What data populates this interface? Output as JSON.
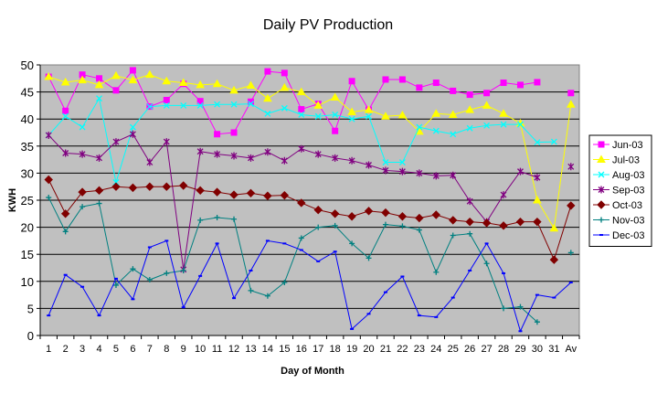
{
  "chart_data": {
    "type": "line",
    "title": "Daily PV Production",
    "xlabel": "Day of Month",
    "ylabel": "KWH",
    "ylim": [
      0,
      50
    ],
    "y_ticks": [
      0,
      5,
      10,
      15,
      20,
      25,
      30,
      35,
      40,
      45,
      50
    ],
    "grid": true,
    "legend_position": "right",
    "plot_background": "#c0c0c0",
    "categories": [
      "1",
      "2",
      "3",
      "4",
      "5",
      "6",
      "7",
      "8",
      "9",
      "10",
      "11",
      "12",
      "13",
      "14",
      "15",
      "16",
      "17",
      "18",
      "19",
      "20",
      "21",
      "22",
      "23",
      "24",
      "25",
      "26",
      "27",
      "28",
      "29",
      "30",
      "31",
      "Av"
    ],
    "series": [
      {
        "name": "Jun-03",
        "color": "#ff00ff",
        "marker": "square",
        "values": [
          47.8,
          41.5,
          48.2,
          47.5,
          45.3,
          49.0,
          42.3,
          43.5,
          46.5,
          43.3,
          37.2,
          37.5,
          43.2,
          48.8,
          48.5,
          41.8,
          42.8,
          37.8,
          47.0,
          41.7,
          47.3,
          47.3,
          45.8,
          46.7,
          45.2,
          44.5,
          44.8,
          46.7,
          46.3,
          46.8,
          null,
          44.8
        ]
      },
      {
        "name": "Jul-03",
        "color": "#ffff00",
        "marker": "triangle",
        "values": [
          47.8,
          46.8,
          47.2,
          46.3,
          48.0,
          47.2,
          48.2,
          47.0,
          46.7,
          46.3,
          46.5,
          45.3,
          46.2,
          43.8,
          45.8,
          45.0,
          42.5,
          44.0,
          41.3,
          41.7,
          40.5,
          40.7,
          37.7,
          41.0,
          40.8,
          41.7,
          42.5,
          41.0,
          39.2,
          25.0,
          19.8,
          42.7
        ]
      },
      {
        "name": "Aug-03",
        "color": "#00ffff",
        "marker": "x",
        "values": [
          37.0,
          40.5,
          38.5,
          43.8,
          28.3,
          38.5,
          42.3,
          42.5,
          42.5,
          42.5,
          42.7,
          42.7,
          42.8,
          41.0,
          42.0,
          40.8,
          40.5,
          40.8,
          40.0,
          40.5,
          32.0,
          32.0,
          38.5,
          37.8,
          37.2,
          38.3,
          38.8,
          39.0,
          39.0,
          35.7,
          35.8,
          null
        ]
      },
      {
        "name": "Sep-03",
        "color": "#800080",
        "marker": "star",
        "values": [
          37.0,
          33.7,
          33.5,
          32.8,
          35.8,
          37.2,
          32.0,
          35.8,
          12.2,
          34.0,
          33.5,
          33.2,
          32.8,
          33.9,
          32.3,
          34.5,
          33.5,
          32.8,
          32.3,
          31.5,
          30.5,
          30.3,
          30.0,
          29.5,
          29.6,
          24.8,
          21.0,
          26.0,
          30.3,
          29.2,
          null,
          31.2
        ]
      },
      {
        "name": "Oct-03",
        "color": "#800000",
        "marker": "diamond",
        "values": [
          28.8,
          22.5,
          26.5,
          26.8,
          27.5,
          27.3,
          27.5,
          27.5,
          27.7,
          26.8,
          26.5,
          26.0,
          26.3,
          25.8,
          25.9,
          24.5,
          23.2,
          22.5,
          22.0,
          23.0,
          22.7,
          22.0,
          21.7,
          22.3,
          21.3,
          21.0,
          20.8,
          20.3,
          21.0,
          21.0,
          14.0,
          24.0
        ]
      },
      {
        "name": "Nov-03",
        "color": "#008080",
        "marker": "plus",
        "values": [
          25.5,
          19.2,
          23.8,
          24.4,
          9.3,
          12.3,
          10.3,
          11.5,
          12.0,
          21.3,
          21.8,
          21.5,
          8.3,
          7.3,
          9.8,
          18.0,
          20.0,
          20.3,
          17.0,
          14.3,
          20.5,
          20.2,
          19.5,
          11.7,
          18.5,
          18.8,
          13.3,
          5.0,
          5.3,
          2.5,
          null,
          15.3
        ]
      },
      {
        "name": "Dec-03",
        "color": "#0000ff",
        "marker": "dash",
        "values": [
          3.7,
          11.2,
          9.0,
          3.7,
          10.5,
          6.7,
          16.3,
          17.5,
          5.2,
          11.0,
          17.0,
          6.9,
          12.0,
          17.5,
          17.0,
          15.8,
          13.7,
          15.5,
          1.2,
          4.0,
          8.0,
          10.9,
          3.7,
          3.4,
          7.0,
          12.0,
          17.0,
          11.5,
          0.8,
          7.5,
          7.0,
          9.8
        ]
      }
    ]
  }
}
